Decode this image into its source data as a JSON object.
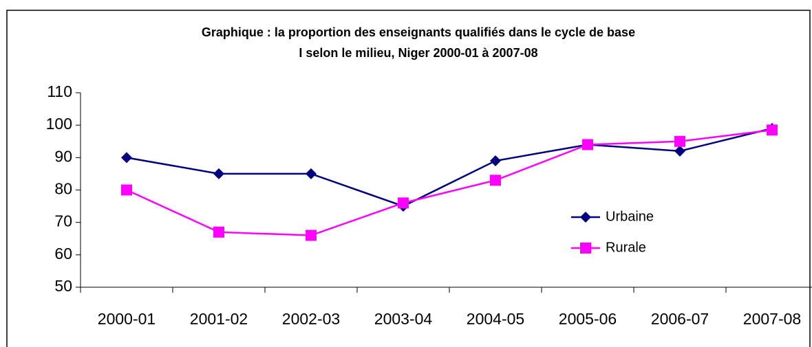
{
  "chart_data": {
    "type": "line",
    "title": [
      "Graphique : la proportion des enseignants qualifiés dans le cycle de base",
      "I selon le milieu, Niger 2000-01 à 2007-08"
    ],
    "categories": [
      "2000-01",
      "2001-02",
      "2002-03",
      "2003-04",
      "2004-05",
      "2005-06",
      "2006-07",
      "2007-08"
    ],
    "series": [
      {
        "name": "Urbaine",
        "color": "#000080",
        "marker": "diamond",
        "values": [
          90,
          85,
          85,
          75,
          89,
          94,
          92,
          99
        ]
      },
      {
        "name": "Rurale",
        "color": "#ff00ff",
        "marker": "square",
        "values": [
          80,
          67,
          66,
          76,
          83,
          94,
          95,
          98.5
        ]
      }
    ],
    "ylim": [
      50,
      110
    ],
    "yticks": [
      50,
      60,
      70,
      80,
      90,
      100,
      110
    ],
    "grid": false,
    "legend": "right"
  }
}
